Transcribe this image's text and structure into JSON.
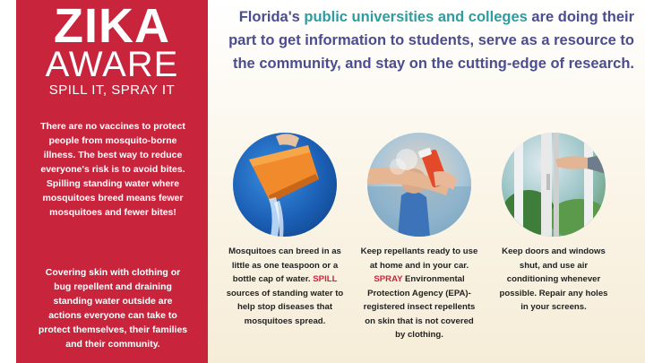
{
  "brand": {
    "title": "ZIKA",
    "subtitle": "AWARE",
    "tagline": "SPILL IT, SPRAY IT"
  },
  "left": {
    "p1": "There are no vaccines to protect people from mosquito-borne illness. The best way to reduce everyone's risk is to avoid bites. Spilling standing water where mosquitoes breed means fewer mosquitoes and fewer bites!",
    "p2": "Covering skin with clothing or bug repellent and draining standing water outside are actions everyone can take to protect themselves, their families and their community."
  },
  "headline": {
    "part1": "Florida's ",
    "highlight": "public universities and colleges",
    "part2": " are doing their part to get information to students, serve as a resource to the community, and stay on the cutting-edge of research."
  },
  "tips": [
    {
      "image_icon": "bucket-spill-icon",
      "pre": "Mosquitoes can breed in as little as one teaspoon or a bottle cap of water. ",
      "keyword": "SPILL",
      "post": " sources of standing water to help stop diseases that mosquitoes spread."
    },
    {
      "image_icon": "spray-repellent-icon",
      "pre": "Keep repellants ready to use at home and in your car. ",
      "keyword": "SPRAY",
      "post": " Environmental Protection Agency (EPA)-registered insect repellents on skin that is not covered by clothing."
    },
    {
      "image_icon": "window-close-icon",
      "text": "Keep doors and windows shut, and use air conditioning whenever possible. Repair any holes in your screens."
    }
  ],
  "colors": {
    "brand_red": "#c8253d",
    "headline_purple": "#4b4d8f",
    "headline_teal": "#2e9da0"
  }
}
